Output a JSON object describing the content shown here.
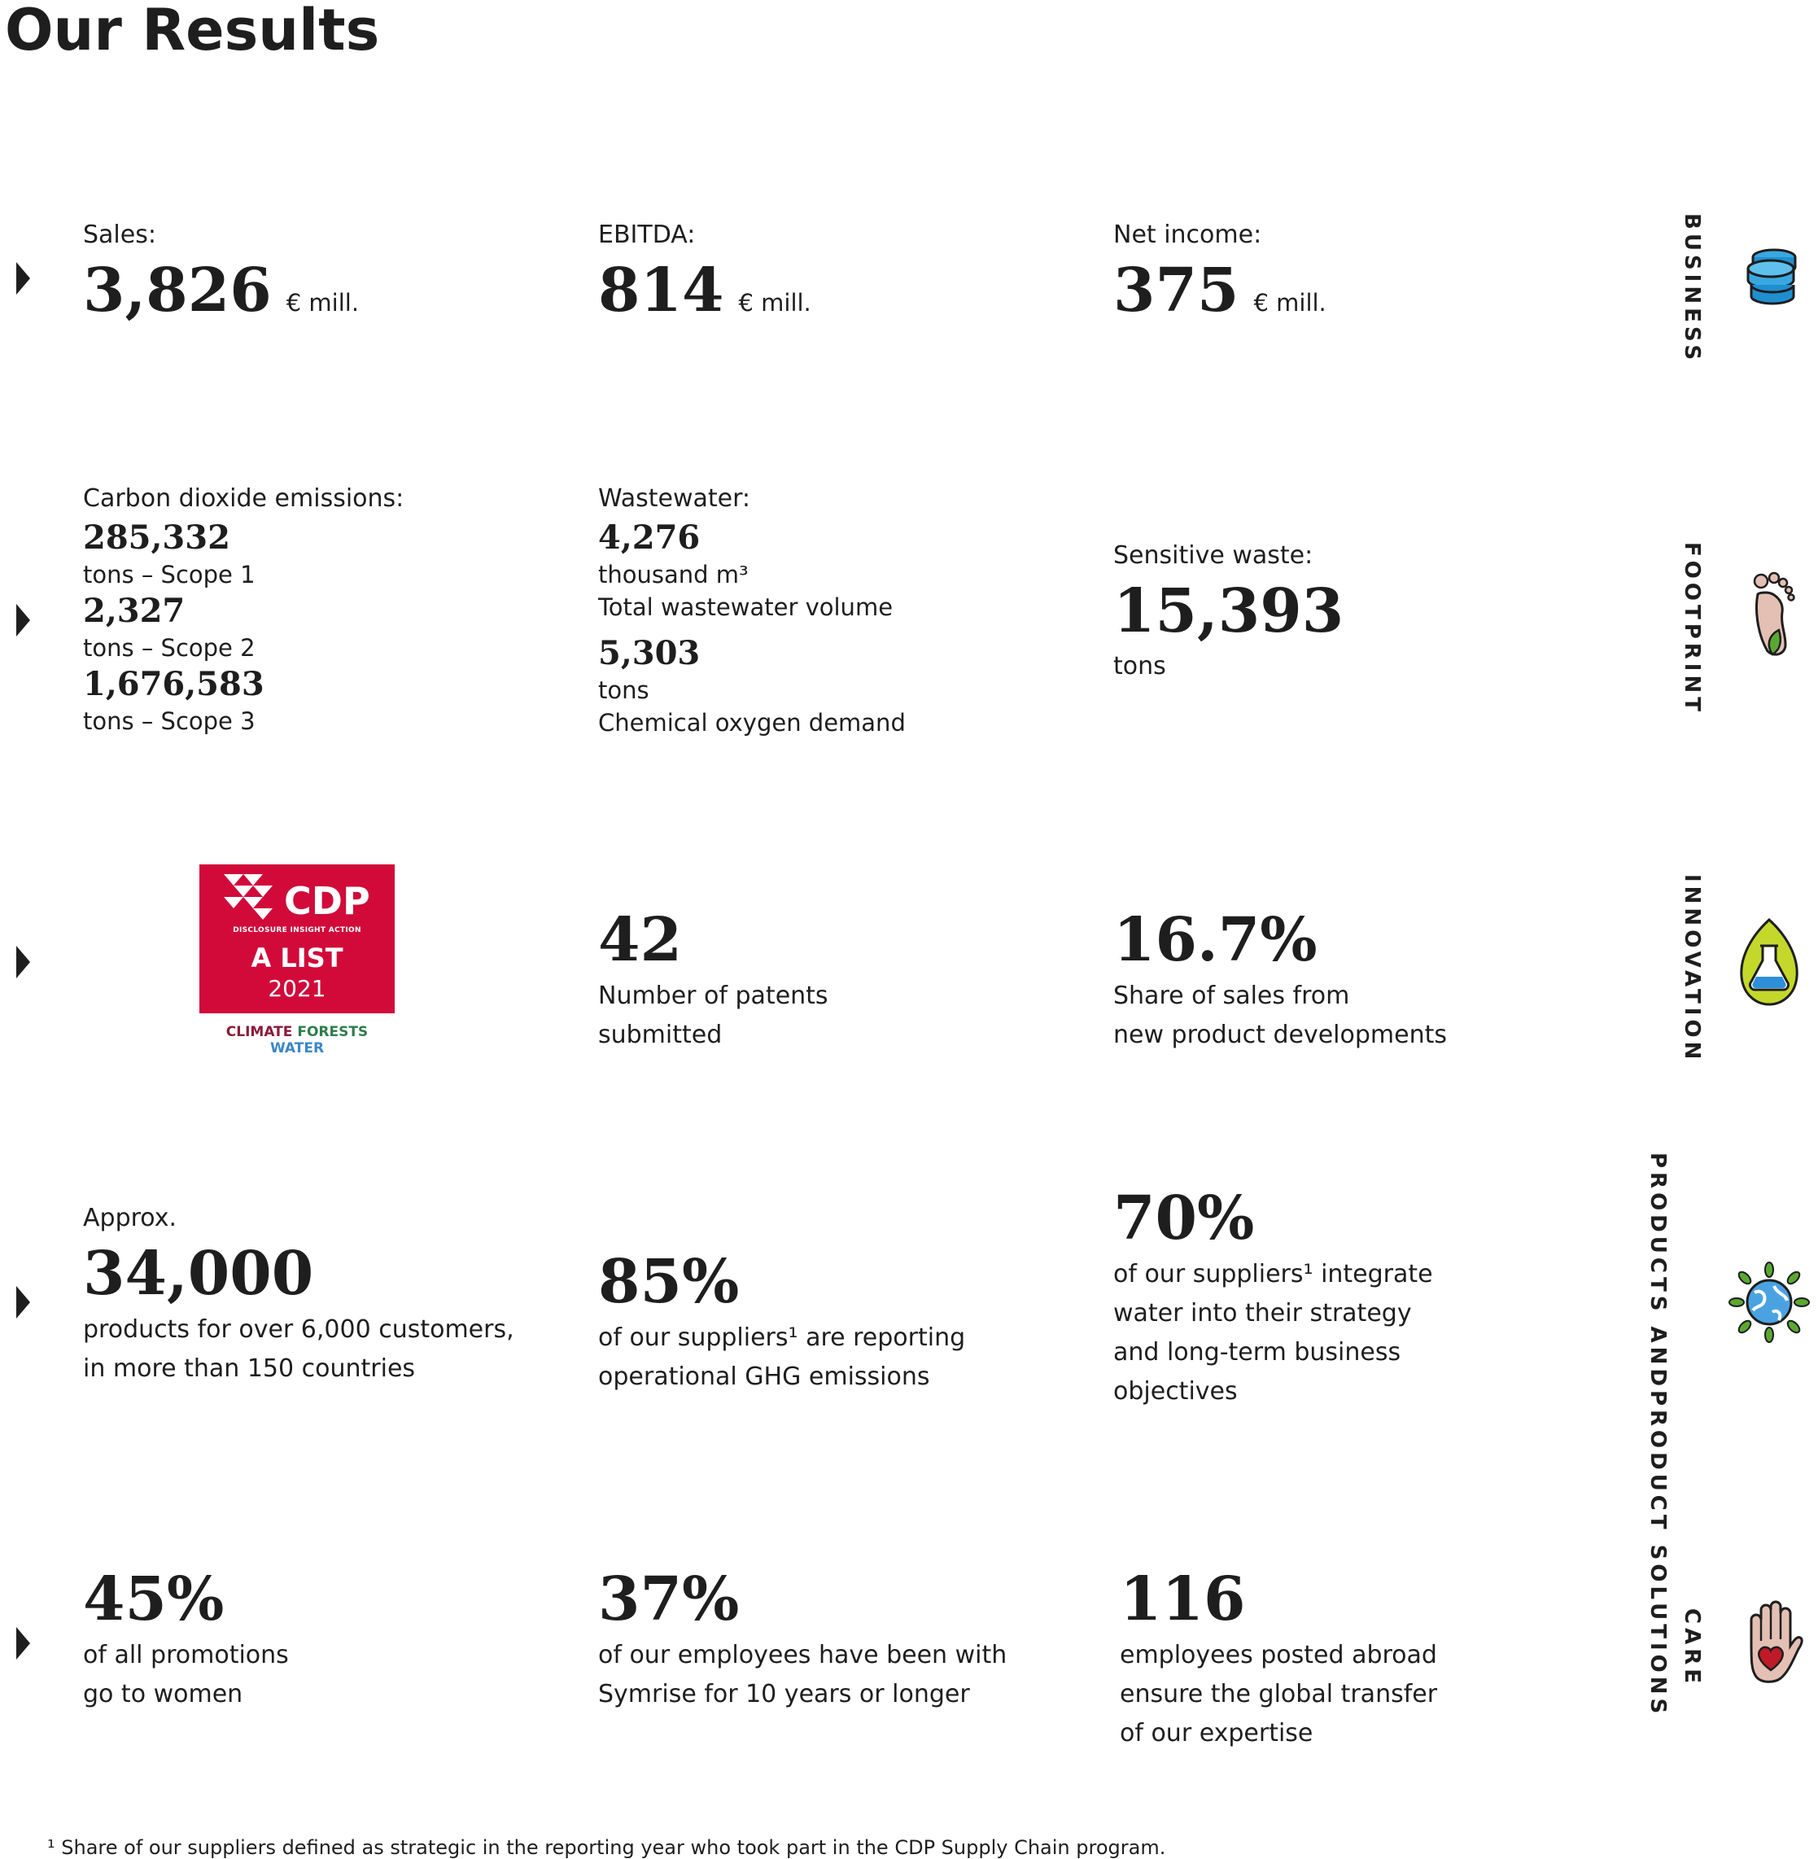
{
  "page": {
    "title": "Our Results"
  },
  "sections": {
    "business": "BUSINESS",
    "footprint": "FOOTPRINT",
    "innovation": "INNOVATION",
    "products": [
      "PRODUCTS AND",
      "PRODUCT SOLUTIONS"
    ],
    "care": "CARE"
  },
  "business": {
    "sales": {
      "label": "Sales:",
      "value": "3,826",
      "unit": "€ mill."
    },
    "ebitda": {
      "label": "EBITDA:",
      "value": "814",
      "unit": "€ mill."
    },
    "net_income": {
      "label": "Net income:",
      "value": "375",
      "unit": "€ mill."
    }
  },
  "footprint": {
    "co2": {
      "label": "Carbon dioxide emissions:",
      "scope1_value": "285,332",
      "scope1_unit": "tons – Scope 1",
      "scope2_value": "2,327",
      "scope2_unit": "tons – Scope 2",
      "scope3_value": "1,676,583",
      "scope3_unit": "tons – Scope 3"
    },
    "wastewater": {
      "label": "Wastewater:",
      "volume_value": "4,276",
      "volume_unit": "thousand m³",
      "volume_desc": "Total wastewater volume",
      "cod_value": "5,303",
      "cod_unit": "tons",
      "cod_desc": "Chemical oxygen demand"
    },
    "sensitive_waste": {
      "label": "Sensitive waste:",
      "value": "15,393",
      "unit": "tons"
    }
  },
  "innovation": {
    "cdp": {
      "word": "CDP",
      "tagline": "DISCLOSURE INSIGHT ACTION",
      "alist": "A LIST",
      "year": "2021",
      "cat_climate": "CLIMATE",
      "cat_forests": "FORESTS",
      "cat_water": "WATER",
      "color_red": "#d10a3a",
      "color_climate": "#8b1a3a",
      "color_forests": "#2e7d4a",
      "color_water": "#3b87c8"
    },
    "patents": {
      "value": "42",
      "line1": "Number of patents",
      "line2": "submitted"
    },
    "share_sales": {
      "value": "16.7%",
      "line1": "Share of sales from",
      "line2": "new product developments"
    }
  },
  "products": {
    "products": {
      "label": "Approx.",
      "value": "34,000",
      "line1": "products for over 6,000 customers,",
      "line2": "in more than 150 countries"
    },
    "suppliers_ghg": {
      "value": "85%",
      "line1": "of our suppliers¹ are reporting",
      "line2": "operational GHG emissions"
    },
    "suppliers_water": {
      "value": "70%",
      "line1": "of our suppliers¹ integrate",
      "line2": "water into their strategy",
      "line3": "and long-term business",
      "line4": "objectives"
    }
  },
  "care": {
    "promotions": {
      "value": "45%",
      "line1": "of all promotions",
      "line2": "go to women"
    },
    "tenure": {
      "value": "37%",
      "line1": "of our employees have been with",
      "line2": "Symrise for 10 years or longer"
    },
    "posted": {
      "value": "116",
      "line1": "employees posted abroad",
      "line2": "ensure the global transfer",
      "line3": "of our expertise"
    }
  },
  "footnote": "¹ Share of our suppliers defined as strategic in the reporting year who took part in the CDP Supply Chain program.",
  "icons": [
    "coins-icon",
    "footprint-icon",
    "flask-leaf-icon",
    "globe-leaves-icon",
    "hand-heart-icon"
  ]
}
